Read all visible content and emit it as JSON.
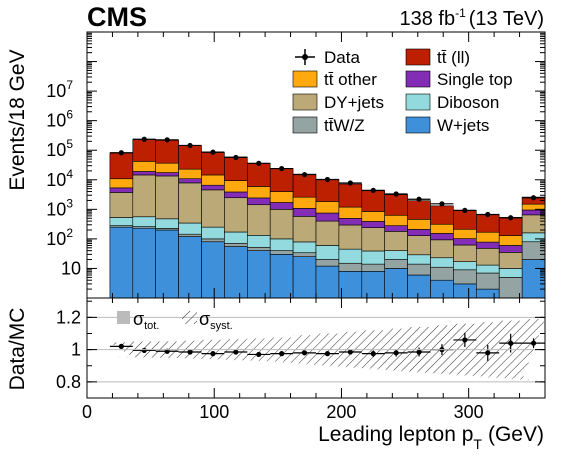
{
  "header": {
    "experiment": "CMS",
    "luminosity": "138 fb",
    "lumi_exp": "-1",
    "energy": "(13 TeV)"
  },
  "chart_data": [
    {
      "type": "bar",
      "stacked": true,
      "log_y": true,
      "ylabel": "Events/18 GeV",
      "xlim": [
        0,
        360
      ],
      "ylim": [
        1,
        1000000000
      ],
      "bin_edges": [
        18,
        36,
        54,
        72,
        90,
        108,
        126,
        144,
        162,
        180,
        198,
        216,
        234,
        252,
        270,
        288,
        306,
        324,
        342,
        360
      ],
      "y_tick_labels": [
        "10",
        "10",
        "10",
        "10",
        "10",
        "10",
        "10"
      ],
      "y_tick_exponents": [
        "",
        "2",
        "3",
        "4",
        "5",
        "6",
        "7"
      ],
      "y_tick_values": [
        10,
        100,
        1000,
        10000,
        100000,
        1000000,
        10000000
      ],
      "series": [
        {
          "name": "W+jets",
          "color": "#3f90da",
          "values": [
            250,
            230,
            200,
            120,
            80,
            55,
            40,
            30,
            25,
            12,
            8,
            8,
            10,
            6,
            4,
            3,
            2,
            1,
            20
          ]
        },
        {
          "name": "tt̄W/Z",
          "color": "#94a4a2",
          "values": [
            30,
            30,
            28,
            24,
            20,
            16,
            12,
            10,
            9,
            8,
            7,
            6,
            10,
            8,
            7,
            6,
            5,
            4,
            60
          ]
        },
        {
          "name": "Diboson",
          "color": "#92dadd",
          "values": [
            250,
            300,
            250,
            200,
            150,
            100,
            80,
            60,
            45,
            40,
            30,
            25,
            20,
            15,
            12,
            8,
            6,
            5,
            80
          ]
        },
        {
          "name": "DY+jets",
          "color": "#a96b59",
          "values": [
            0,
            0,
            0,
            0,
            0,
            0,
            0,
            0,
            0,
            0,
            0,
            0,
            0,
            0,
            0,
            0,
            0,
            0,
            0
          ]
        },
        {
          "name": "DY+jets",
          "color": "#bbaa77",
          "values": [
            3200,
            14000,
            13000,
            7500,
            4300,
            2300,
            1300,
            900,
            500,
            340,
            250,
            200,
            140,
            100,
            70,
            45,
            35,
            25,
            490
          ]
        },
        {
          "name": "Single top",
          "color": "#832db6",
          "values": [
            1600,
            4500,
            4000,
            3000,
            2000,
            1400,
            1000,
            700,
            500,
            350,
            200,
            150,
            100,
            80,
            60,
            40,
            30,
            25,
            300
          ]
        },
        {
          "name": "tt̄ other",
          "color": "#ffa90e",
          "values": [
            5500,
            23000,
            19000,
            12000,
            8000,
            5500,
            3500,
            2300,
            1500,
            1100,
            700,
            460,
            350,
            250,
            160,
            110,
            90,
            70,
            550
          ]
        },
        {
          "name": "tt̄ (ll)",
          "color": "#bd1f01",
          "values": [
            70000,
            190000,
            180000,
            120000,
            70000,
            50000,
            30000,
            20000,
            13000,
            8500,
            6000,
            3400,
            2500,
            1500,
            1000,
            700,
            500,
            400,
            1100
          ]
        }
      ],
      "data_points": {
        "name": "Data",
        "values": [
          82000,
          235000,
          225000,
          145000,
          86000,
          57000,
          36000,
          24000,
          15000,
          10200,
          7800,
          4400,
          3300,
          2200,
          1540,
          920,
          670,
          520,
          2460
        ]
      },
      "legend": {
        "placement": "top-right",
        "entries": [
          "Data",
          "tt̄ (ll)",
          "tt̄ other",
          "Single top",
          "DY+jets",
          "Diboson",
          "tt̄W/Z",
          "W+jets"
        ]
      }
    },
    {
      "type": "scatter",
      "ylabel": "Data/MC",
      "xlabel": "Leading lepton p",
      "xlabel_sub": "T",
      "xlabel_unit": "(GeV)",
      "xlim": [
        0,
        360
      ],
      "ylim": [
        0.7,
        1.32
      ],
      "x_ticks": [
        0,
        100,
        200,
        300
      ],
      "y_ticks": [
        0.8,
        1,
        1.2
      ],
      "y_tick_labels": [
        "0.8",
        "1",
        "1.2"
      ],
      "x": [
        27,
        45,
        63,
        81,
        99,
        117,
        135,
        153,
        171,
        189,
        207,
        225,
        243,
        261,
        279,
        297,
        315,
        333,
        351
      ],
      "ratio": [
        1.02,
        0.995,
        0.99,
        0.985,
        0.975,
        0.985,
        0.97,
        0.975,
        0.98,
        0.975,
        0.985,
        0.975,
        0.98,
        0.985,
        1.0,
        1.06,
        0.98,
        1.04,
        1.04
      ],
      "ratio_err": [
        0.004,
        0.003,
        0.003,
        0.004,
        0.005,
        0.006,
        0.007,
        0.009,
        0.011,
        0.013,
        0.015,
        0.02,
        0.023,
        0.028,
        0.034,
        0.044,
        0.05,
        0.058,
        0.03
      ],
      "syst_band_halfwidth": [
        0.045,
        0.05,
        0.05,
        0.055,
        0.06,
        0.065,
        0.07,
        0.075,
        0.09,
        0.1,
        0.11,
        0.12,
        0.13,
        0.14,
        0.15,
        0.16,
        0.17,
        0.18,
        0.19
      ],
      "tot_band_halfwidth": [
        0.045,
        0.05,
        0.05,
        0.055,
        0.06,
        0.065,
        0.07,
        0.075,
        0.09,
        0.1,
        0.11,
        0.12,
        0.13,
        0.14,
        0.15,
        0.16,
        0.17,
        0.18,
        0.19
      ],
      "legend": {
        "tot_label": "σ",
        "tot_sub": "tot.",
        "syst_label": "σ",
        "syst_sub": "syst."
      }
    }
  ]
}
